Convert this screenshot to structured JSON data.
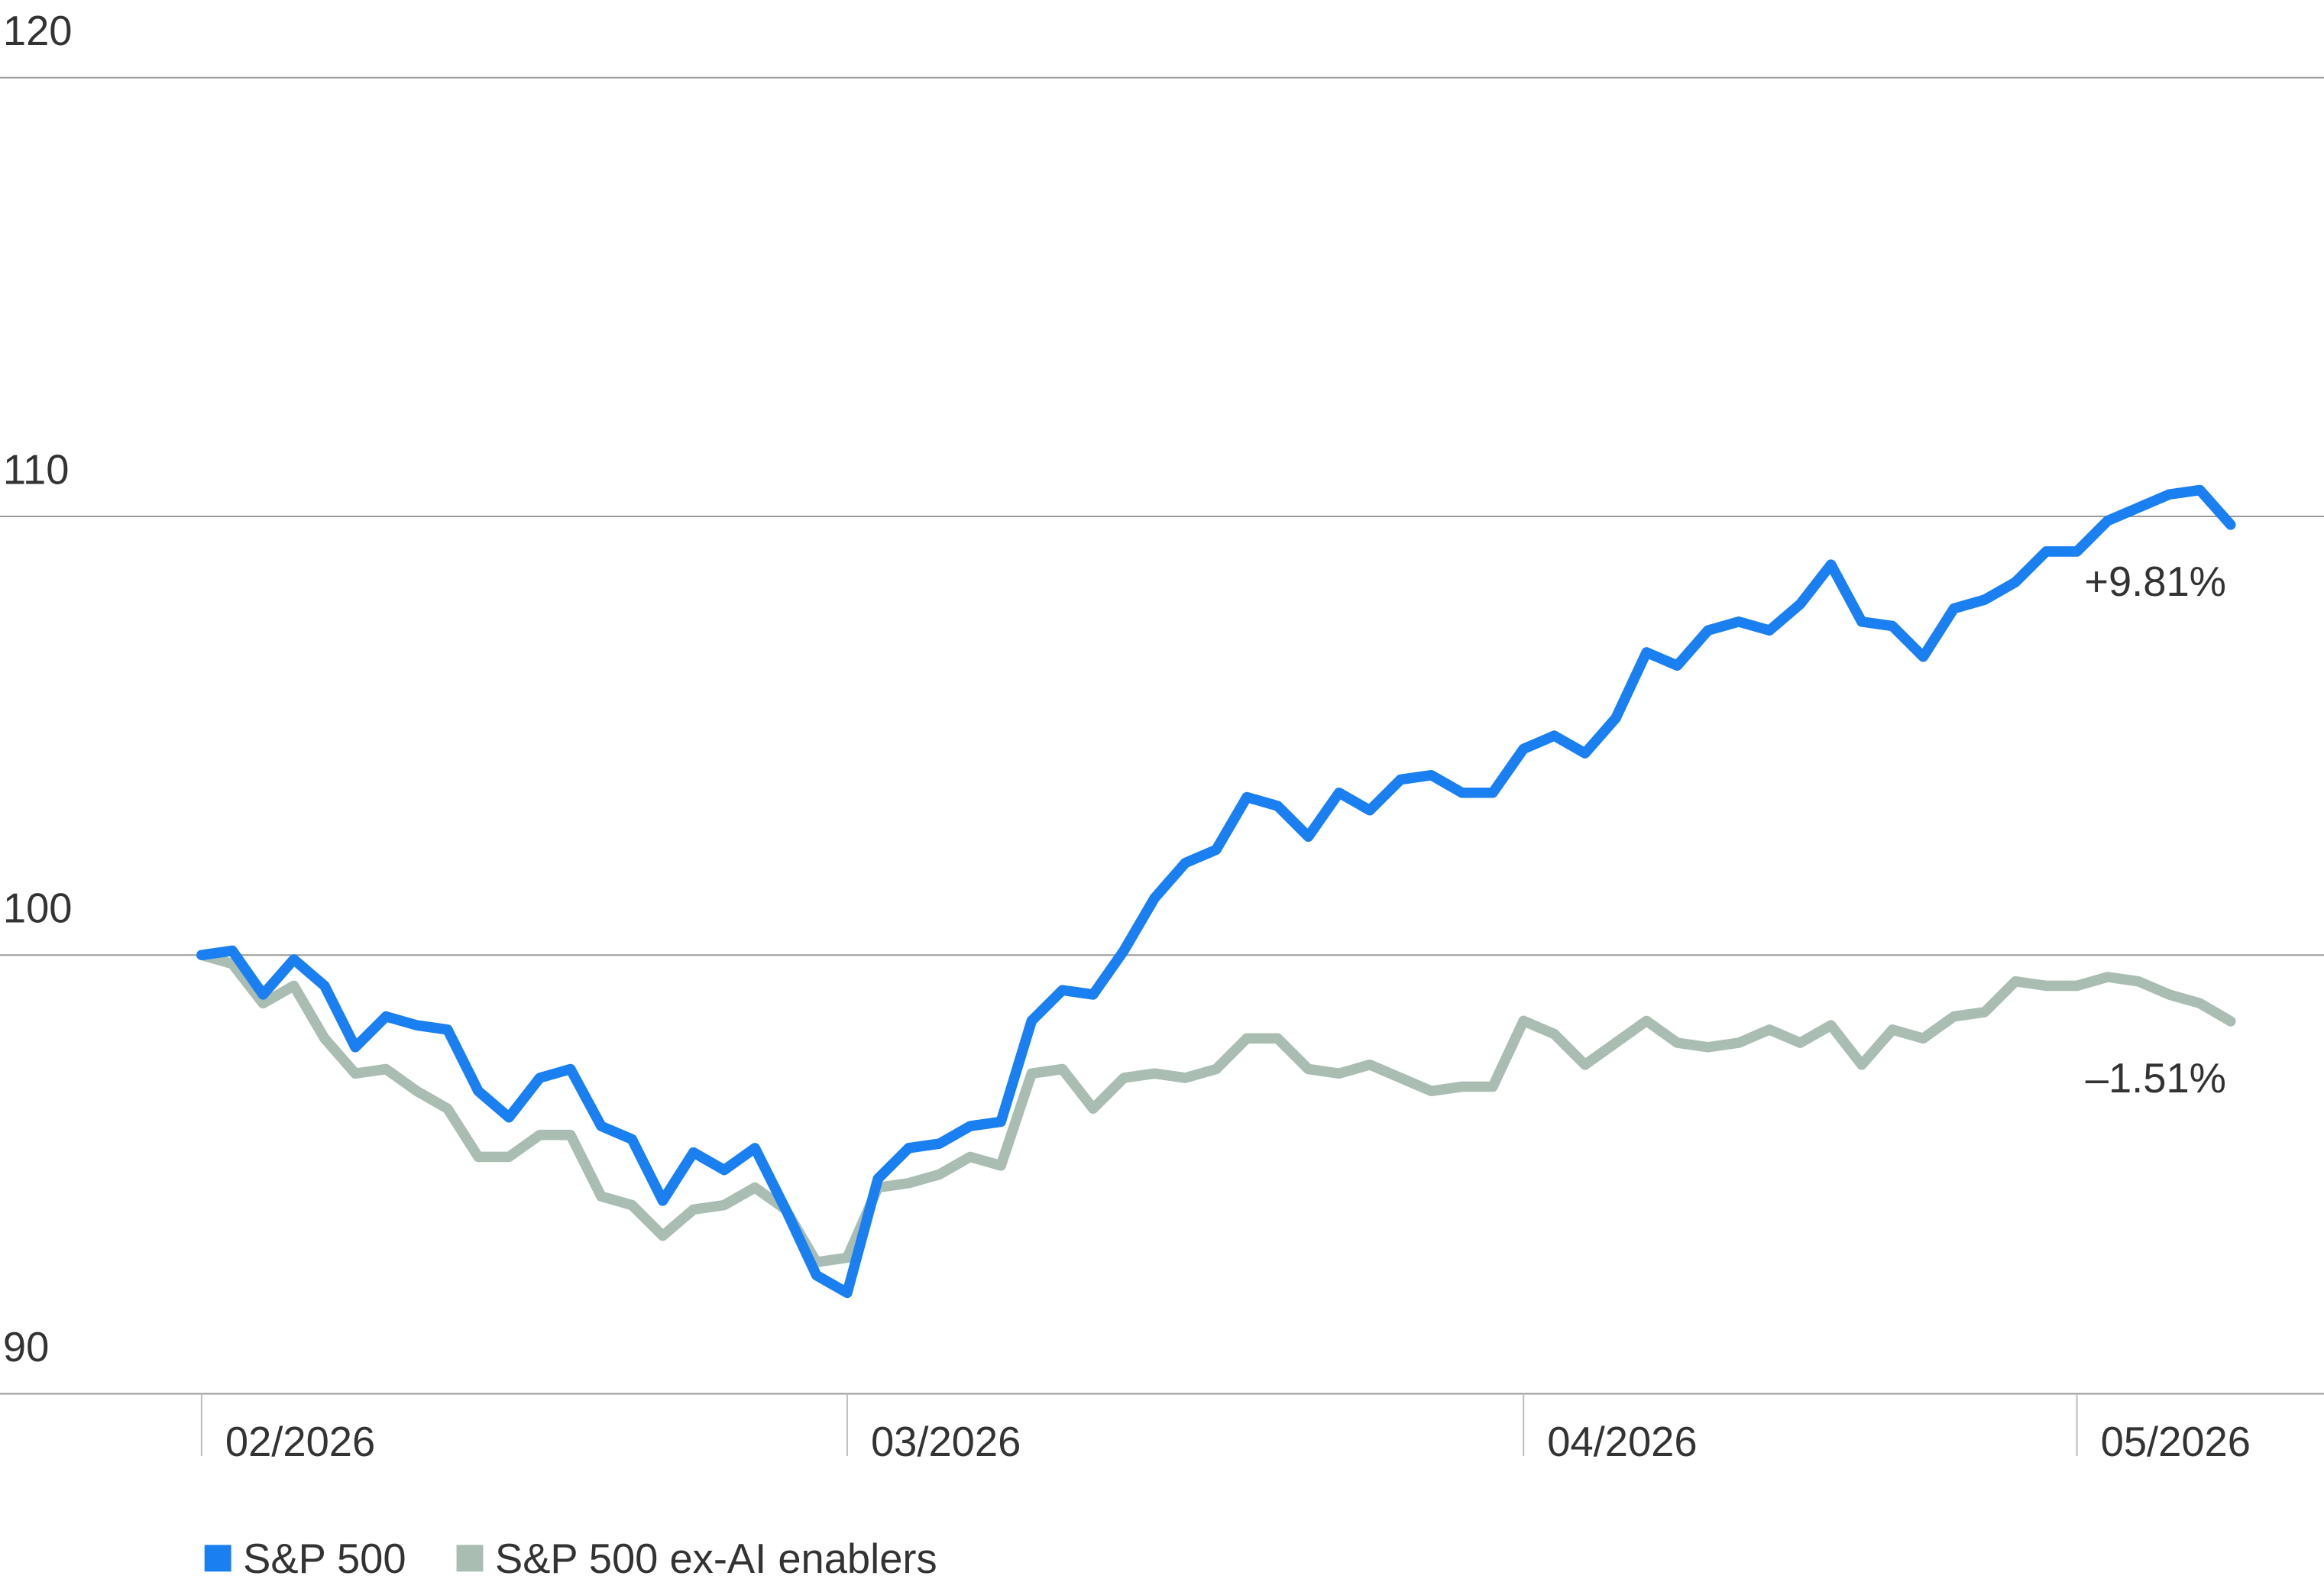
{
  "chart_data": {
    "type": "line",
    "categories": [
      "02/2026",
      null,
      null,
      null,
      null,
      null,
      null,
      null,
      null,
      null,
      null,
      null,
      null,
      null,
      null,
      null,
      null,
      null,
      null,
      null,
      null,
      "03/2026",
      null,
      null,
      null,
      null,
      null,
      null,
      null,
      null,
      null,
      null,
      null,
      null,
      null,
      null,
      null,
      null,
      null,
      null,
      null,
      null,
      null,
      "04/2026",
      null,
      null,
      null,
      null,
      null,
      null,
      null,
      null,
      null,
      null,
      null,
      null,
      null,
      null,
      null,
      null,
      null,
      "05/2026",
      null,
      null,
      null,
      null,
      null
    ],
    "series": [
      {
        "name": "S&P 500",
        "color": "#1a7ff0",
        "values": [
          100,
          100.1,
          99.1,
          99.9,
          99.3,
          97.9,
          98.6,
          98.4,
          98.3,
          96.9,
          96.3,
          97.2,
          97.4,
          96.1,
          95.8,
          94.4,
          95.5,
          95.1,
          95.6,
          94.2,
          92.7,
          92.3,
          94.9,
          95.6,
          95.7,
          96.1,
          96.2,
          98.5,
          99.2,
          99.1,
          100.1,
          101.3,
          102.1,
          102.4,
          103.6,
          103.4,
          102.7,
          103.7,
          103.3,
          104,
          104.1,
          103.7,
          103.7,
          104.7,
          105,
          104.6,
          105.4,
          106.9,
          106.6,
          107.4,
          107.6,
          107.4,
          108,
          108.9,
          107.6,
          107.5,
          106.8,
          107.9,
          108.1,
          108.5,
          109.2,
          109.2,
          109.9,
          110.2,
          110.5,
          110.6,
          109.81
        ]
      },
      {
        "name": "S&P 500 ex-AI enablers",
        "color": "#a9bdb3",
        "values": [
          100,
          99.8,
          98.9,
          99.3,
          98.1,
          97.3,
          97.4,
          96.9,
          96.5,
          95.4,
          95.4,
          95.9,
          95.9,
          94.5,
          94.3,
          93.6,
          94.2,
          94.3,
          94.7,
          94.2,
          93.0,
          93.1,
          94.7,
          94.8,
          95.0,
          95.4,
          95.2,
          97.3,
          97.4,
          96.5,
          97.2,
          97.3,
          97.2,
          97.4,
          98.1,
          98.1,
          97.4,
          97.3,
          97.5,
          97.2,
          96.9,
          97.0,
          97.0,
          98.5,
          98.2,
          97.5,
          98.0,
          98.5,
          98.0,
          97.9,
          98.0,
          98.3,
          98.0,
          98.4,
          97.5,
          98.3,
          98.1,
          98.6,
          98.7,
          99.4,
          99.3,
          99.3,
          99.5,
          99.4,
          99.1,
          98.9,
          98.49
        ]
      }
    ],
    "annotations": [
      "+9.81%",
      "–1.51%"
    ],
    "ylim": [
      90,
      120
    ],
    "yticks": [
      90,
      100,
      110,
      120
    ],
    "grid": true
  }
}
